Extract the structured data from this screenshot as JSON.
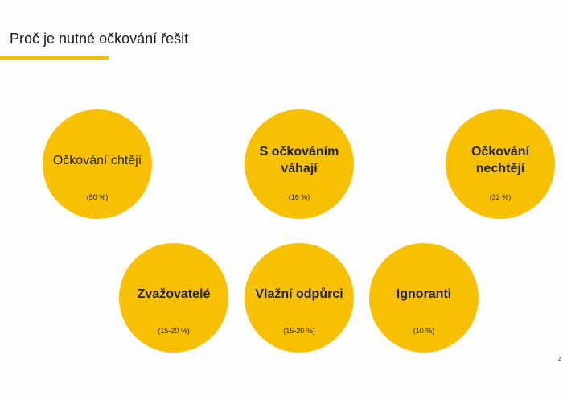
{
  "title": "Proč je nutné očkování řešit",
  "nodes": [
    {
      "label": "Očkování chtějí",
      "note": "(50 %)",
      "bold": false
    },
    {
      "label": "S očkováním váhají",
      "note": "(16 %)",
      "bold": true
    },
    {
      "label": "Očkování nechtějí",
      "note": "(32 %)",
      "bold": true
    },
    {
      "label": "Zvažovatelé",
      "note": "(15-20 %)",
      "bold": true
    },
    {
      "label": "Vlažní odpůrci",
      "note": "(15-20 %)",
      "bold": true
    },
    {
      "label": "Ignoranti",
      "note": "(10 %)",
      "bold": true
    }
  ],
  "footer": "z"
}
